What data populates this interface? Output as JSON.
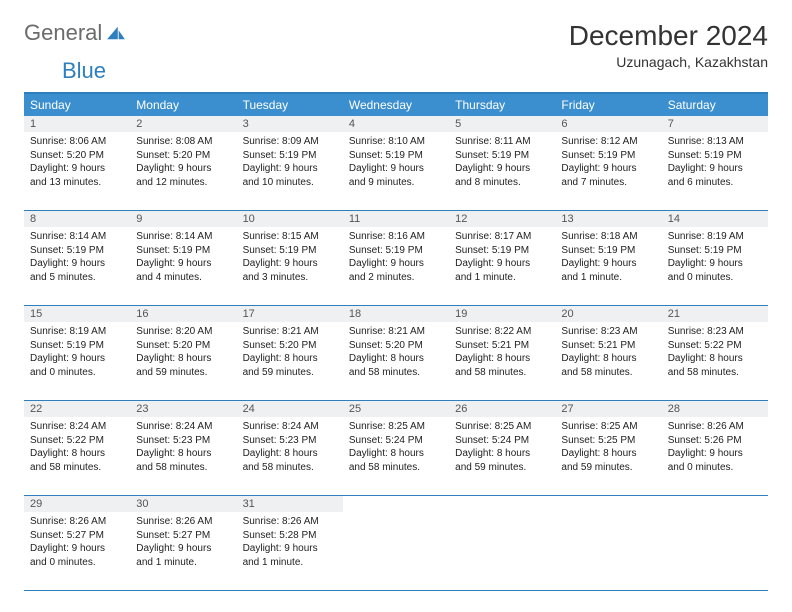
{
  "logo": {
    "text1": "General",
    "text2": "Blue"
  },
  "header": {
    "month_title": "December 2024",
    "location": "Uzunagach, Kazakhstan"
  },
  "calendar": {
    "weekdays": [
      "Sunday",
      "Monday",
      "Tuesday",
      "Wednesday",
      "Thursday",
      "Friday",
      "Saturday"
    ],
    "header_bg": "#3b8fcf",
    "border_color": "#2f7fbf",
    "daynum_bg": "#eef0f2",
    "weeks": [
      {
        "nums": [
          "1",
          "2",
          "3",
          "4",
          "5",
          "6",
          "7"
        ],
        "cells": [
          {
            "sunrise": "Sunrise: 8:06 AM",
            "sunset": "Sunset: 5:20 PM",
            "daylight1": "Daylight: 9 hours",
            "daylight2": "and 13 minutes."
          },
          {
            "sunrise": "Sunrise: 8:08 AM",
            "sunset": "Sunset: 5:20 PM",
            "daylight1": "Daylight: 9 hours",
            "daylight2": "and 12 minutes."
          },
          {
            "sunrise": "Sunrise: 8:09 AM",
            "sunset": "Sunset: 5:19 PM",
            "daylight1": "Daylight: 9 hours",
            "daylight2": "and 10 minutes."
          },
          {
            "sunrise": "Sunrise: 8:10 AM",
            "sunset": "Sunset: 5:19 PM",
            "daylight1": "Daylight: 9 hours",
            "daylight2": "and 9 minutes."
          },
          {
            "sunrise": "Sunrise: 8:11 AM",
            "sunset": "Sunset: 5:19 PM",
            "daylight1": "Daylight: 9 hours",
            "daylight2": "and 8 minutes."
          },
          {
            "sunrise": "Sunrise: 8:12 AM",
            "sunset": "Sunset: 5:19 PM",
            "daylight1": "Daylight: 9 hours",
            "daylight2": "and 7 minutes."
          },
          {
            "sunrise": "Sunrise: 8:13 AM",
            "sunset": "Sunset: 5:19 PM",
            "daylight1": "Daylight: 9 hours",
            "daylight2": "and 6 minutes."
          }
        ]
      },
      {
        "nums": [
          "8",
          "9",
          "10",
          "11",
          "12",
          "13",
          "14"
        ],
        "cells": [
          {
            "sunrise": "Sunrise: 8:14 AM",
            "sunset": "Sunset: 5:19 PM",
            "daylight1": "Daylight: 9 hours",
            "daylight2": "and 5 minutes."
          },
          {
            "sunrise": "Sunrise: 8:14 AM",
            "sunset": "Sunset: 5:19 PM",
            "daylight1": "Daylight: 9 hours",
            "daylight2": "and 4 minutes."
          },
          {
            "sunrise": "Sunrise: 8:15 AM",
            "sunset": "Sunset: 5:19 PM",
            "daylight1": "Daylight: 9 hours",
            "daylight2": "and 3 minutes."
          },
          {
            "sunrise": "Sunrise: 8:16 AM",
            "sunset": "Sunset: 5:19 PM",
            "daylight1": "Daylight: 9 hours",
            "daylight2": "and 2 minutes."
          },
          {
            "sunrise": "Sunrise: 8:17 AM",
            "sunset": "Sunset: 5:19 PM",
            "daylight1": "Daylight: 9 hours",
            "daylight2": "and 1 minute."
          },
          {
            "sunrise": "Sunrise: 8:18 AM",
            "sunset": "Sunset: 5:19 PM",
            "daylight1": "Daylight: 9 hours",
            "daylight2": "and 1 minute."
          },
          {
            "sunrise": "Sunrise: 8:19 AM",
            "sunset": "Sunset: 5:19 PM",
            "daylight1": "Daylight: 9 hours",
            "daylight2": "and 0 minutes."
          }
        ]
      },
      {
        "nums": [
          "15",
          "16",
          "17",
          "18",
          "19",
          "20",
          "21"
        ],
        "cells": [
          {
            "sunrise": "Sunrise: 8:19 AM",
            "sunset": "Sunset: 5:19 PM",
            "daylight1": "Daylight: 9 hours",
            "daylight2": "and 0 minutes."
          },
          {
            "sunrise": "Sunrise: 8:20 AM",
            "sunset": "Sunset: 5:20 PM",
            "daylight1": "Daylight: 8 hours",
            "daylight2": "and 59 minutes."
          },
          {
            "sunrise": "Sunrise: 8:21 AM",
            "sunset": "Sunset: 5:20 PM",
            "daylight1": "Daylight: 8 hours",
            "daylight2": "and 59 minutes."
          },
          {
            "sunrise": "Sunrise: 8:21 AM",
            "sunset": "Sunset: 5:20 PM",
            "daylight1": "Daylight: 8 hours",
            "daylight2": "and 58 minutes."
          },
          {
            "sunrise": "Sunrise: 8:22 AM",
            "sunset": "Sunset: 5:21 PM",
            "daylight1": "Daylight: 8 hours",
            "daylight2": "and 58 minutes."
          },
          {
            "sunrise": "Sunrise: 8:23 AM",
            "sunset": "Sunset: 5:21 PM",
            "daylight1": "Daylight: 8 hours",
            "daylight2": "and 58 minutes."
          },
          {
            "sunrise": "Sunrise: 8:23 AM",
            "sunset": "Sunset: 5:22 PM",
            "daylight1": "Daylight: 8 hours",
            "daylight2": "and 58 minutes."
          }
        ]
      },
      {
        "nums": [
          "22",
          "23",
          "24",
          "25",
          "26",
          "27",
          "28"
        ],
        "cells": [
          {
            "sunrise": "Sunrise: 8:24 AM",
            "sunset": "Sunset: 5:22 PM",
            "daylight1": "Daylight: 8 hours",
            "daylight2": "and 58 minutes."
          },
          {
            "sunrise": "Sunrise: 8:24 AM",
            "sunset": "Sunset: 5:23 PM",
            "daylight1": "Daylight: 8 hours",
            "daylight2": "and 58 minutes."
          },
          {
            "sunrise": "Sunrise: 8:24 AM",
            "sunset": "Sunset: 5:23 PM",
            "daylight1": "Daylight: 8 hours",
            "daylight2": "and 58 minutes."
          },
          {
            "sunrise": "Sunrise: 8:25 AM",
            "sunset": "Sunset: 5:24 PM",
            "daylight1": "Daylight: 8 hours",
            "daylight2": "and 58 minutes."
          },
          {
            "sunrise": "Sunrise: 8:25 AM",
            "sunset": "Sunset: 5:24 PM",
            "daylight1": "Daylight: 8 hours",
            "daylight2": "and 59 minutes."
          },
          {
            "sunrise": "Sunrise: 8:25 AM",
            "sunset": "Sunset: 5:25 PM",
            "daylight1": "Daylight: 8 hours",
            "daylight2": "and 59 minutes."
          },
          {
            "sunrise": "Sunrise: 8:26 AM",
            "sunset": "Sunset: 5:26 PM",
            "daylight1": "Daylight: 9 hours",
            "daylight2": "and 0 minutes."
          }
        ]
      },
      {
        "nums": [
          "29",
          "30",
          "31",
          "",
          "",
          "",
          ""
        ],
        "cells": [
          {
            "sunrise": "Sunrise: 8:26 AM",
            "sunset": "Sunset: 5:27 PM",
            "daylight1": "Daylight: 9 hours",
            "daylight2": "and 0 minutes."
          },
          {
            "sunrise": "Sunrise: 8:26 AM",
            "sunset": "Sunset: 5:27 PM",
            "daylight1": "Daylight: 9 hours",
            "daylight2": "and 1 minute."
          },
          {
            "sunrise": "Sunrise: 8:26 AM",
            "sunset": "Sunset: 5:28 PM",
            "daylight1": "Daylight: 9 hours",
            "daylight2": "and 1 minute."
          },
          null,
          null,
          null,
          null
        ]
      }
    ]
  }
}
